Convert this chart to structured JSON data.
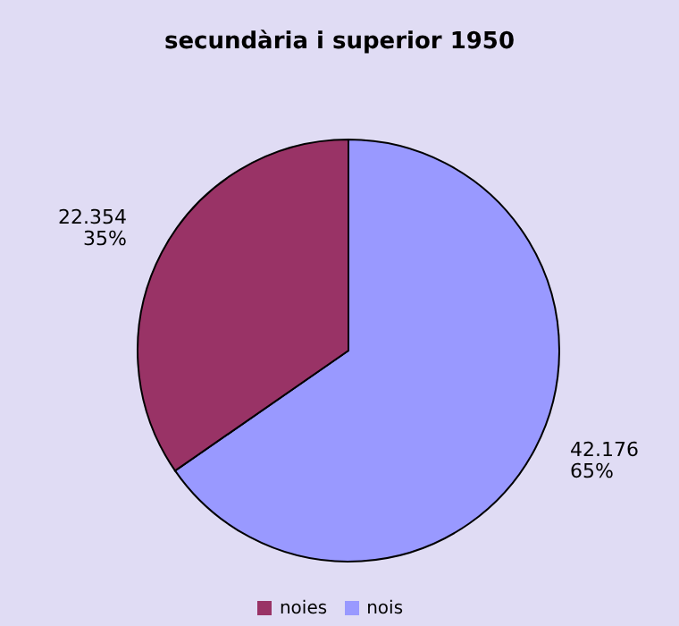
{
  "chart_data": {
    "type": "pie",
    "title": "secundària i superior 1950",
    "categories": [
      "nois",
      "noies"
    ],
    "values": [
      42176,
      22354
    ],
    "colors": [
      "#9999ff",
      "#993366"
    ],
    "value_labels": [
      "42.176\n65%",
      "22.354\n35%"
    ],
    "legend": "bottom"
  }
}
